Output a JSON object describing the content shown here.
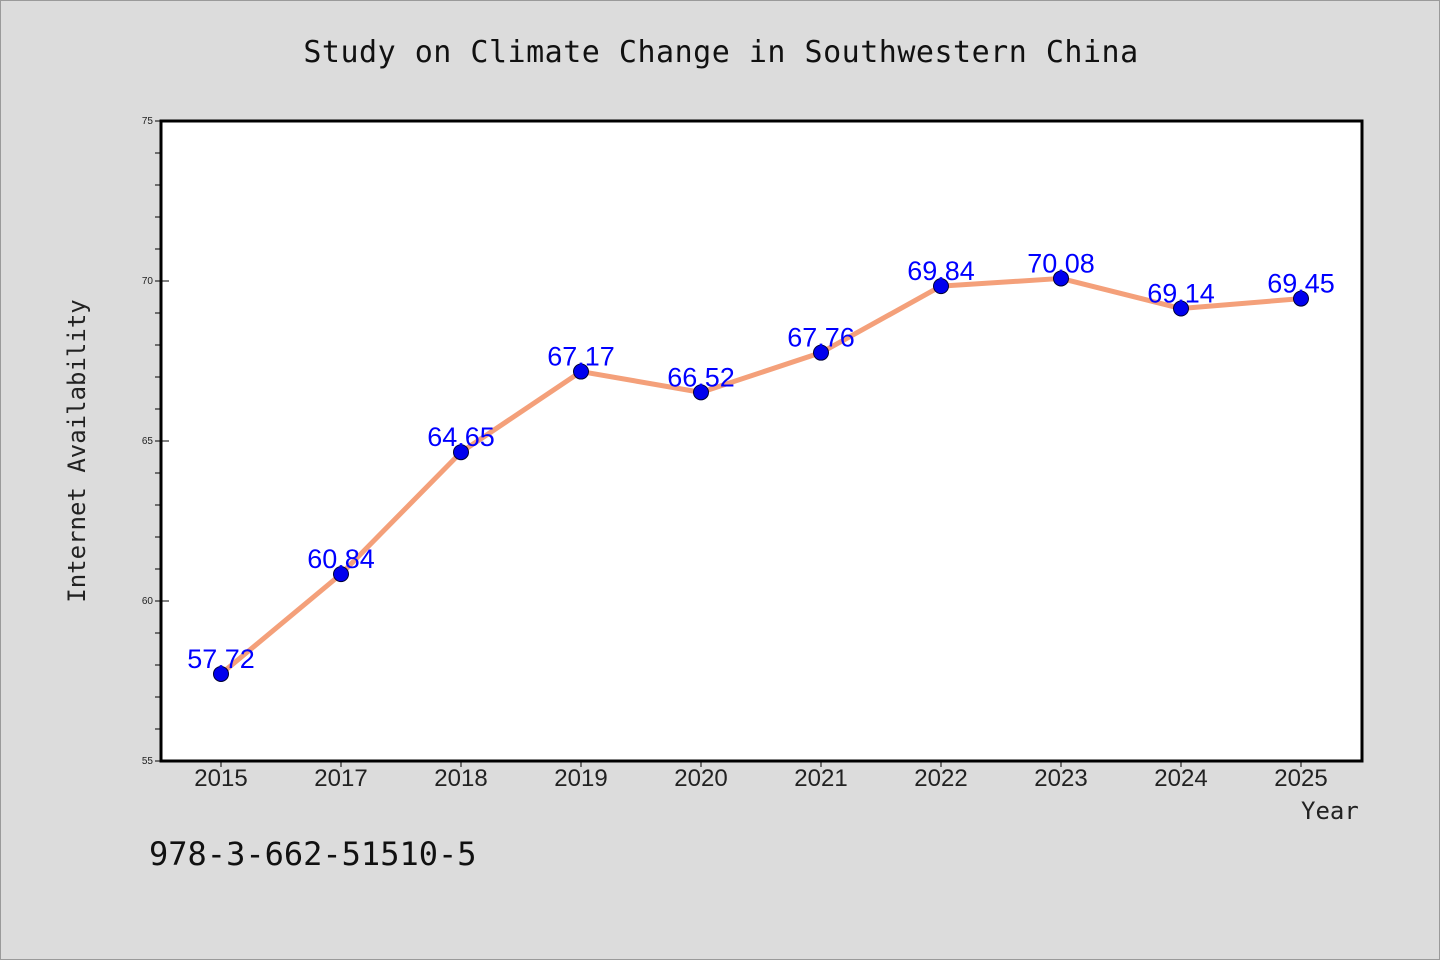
{
  "chart_data": {
    "type": "line",
    "title": "Study on Climate Change in Southwestern China",
    "xlabel": "Year",
    "ylabel": "Internet Availability",
    "categories": [
      "2015",
      "2017",
      "2018",
      "2019",
      "2020",
      "2021",
      "2022",
      "2023",
      "2024",
      "2025"
    ],
    "series": [
      {
        "values": [
          57.72,
          60.84,
          64.65,
          67.17,
          66.52,
          67.76,
          69.84,
          70.08,
          69.14,
          69.45
        ],
        "line_color": "#f4a07a",
        "marker_color": "#0000ee",
        "label_color": "#0000ff"
      }
    ],
    "ylim": [
      55,
      75
    ],
    "yticks": [
      55,
      60,
      65,
      70,
      75
    ],
    "grid": false,
    "legend": "none",
    "data_labels": true
  },
  "footnote": "978-3-662-51510-5",
  "colors": {
    "figure_background": "#dcdcdc",
    "plot_background": "#ffffff",
    "axes": "#000000"
  }
}
